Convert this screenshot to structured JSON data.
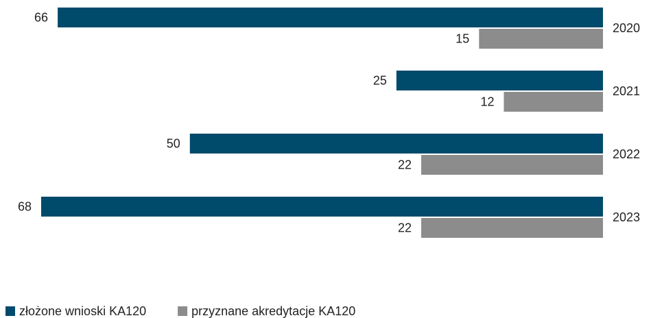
{
  "chart_data": {
    "type": "barh",
    "categories": [
      "2020",
      "2021",
      "2022",
      "2023"
    ],
    "series": [
      {
        "name": "złożone wnioski KA120",
        "color": "#004a6b",
        "values": [
          66,
          25,
          50,
          68
        ]
      },
      {
        "name": "przyznane akredytacje KA120",
        "color": "#8c8c8c",
        "values": [
          15,
          12,
          22,
          22
        ]
      }
    ],
    "legend": "bottom-left"
  }
}
